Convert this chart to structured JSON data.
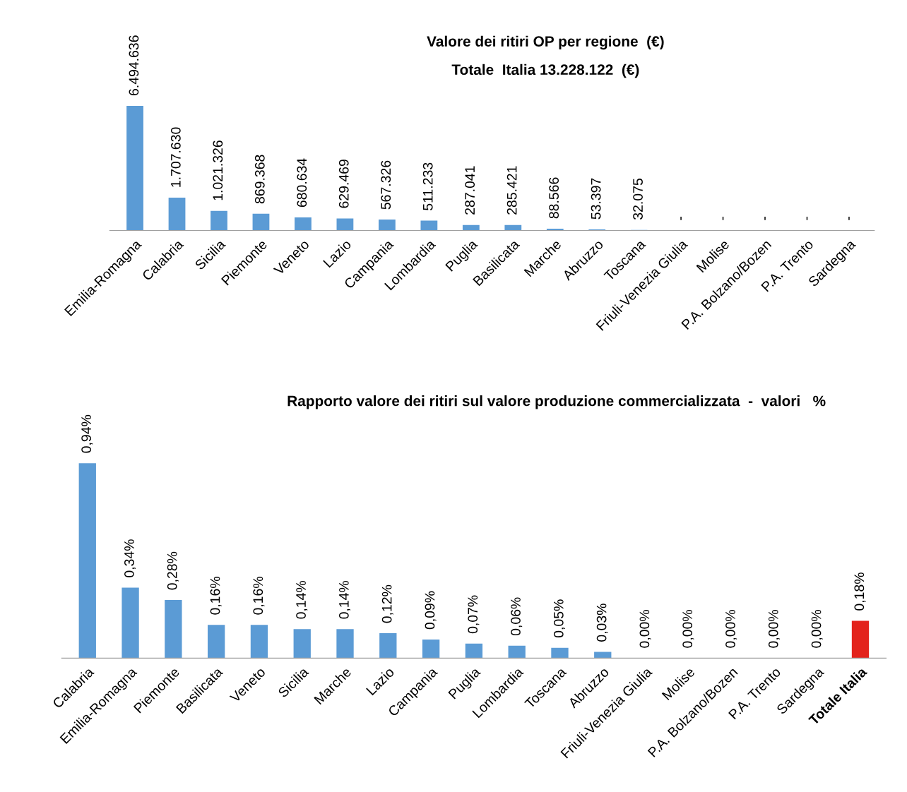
{
  "chart_data": [
    {
      "type": "bar",
      "title": "Valore dei ritiri OP per regione  (€)",
      "subtitle": "Totale  Italia 13.228.122  (€)",
      "categories": [
        "Emilia-Romagna",
        "Calabria",
        "Sicilia",
        "Piemonte",
        "Veneto",
        "Lazio",
        "Campania",
        "Lombardia",
        "Puglia",
        "Basilicata",
        "Marche",
        "Abruzzo",
        "Toscana",
        "Friuli-Venezia Giulia",
        "Molise",
        "P.A. Bolzano/Bozen",
        "P.A. Trento",
        "Sardegna"
      ],
      "values": [
        6494636,
        1707630,
        1021326,
        869368,
        680634,
        629469,
        567326,
        511233,
        287041,
        285421,
        88566,
        53397,
        32075,
        0,
        0,
        0,
        0,
        0
      ],
      "value_labels": [
        "6.494.636",
        "1.707.630",
        "1.021.326",
        "869.368",
        "680.634",
        "629.469",
        "567.326",
        "511.233",
        "287.041",
        "285.421",
        "88.566",
        "53.397",
        "32.075",
        "-",
        "-",
        "-",
        "-",
        "-"
      ],
      "colors": [
        "#5b9bd5",
        "#5b9bd5",
        "#5b9bd5",
        "#5b9bd5",
        "#5b9bd5",
        "#5b9bd5",
        "#5b9bd5",
        "#5b9bd5",
        "#5b9bd5",
        "#5b9bd5",
        "#5b9bd5",
        "#5b9bd5",
        "#5b9bd5",
        "#5b9bd5",
        "#5b9bd5",
        "#5b9bd5",
        "#5b9bd5",
        "#5b9bd5"
      ],
      "tick_labels": "x",
      "grid": false,
      "legend": false
    },
    {
      "type": "bar",
      "title": "Rapporto valore dei ritiri sul valore produzione commercializzata  -  valori   %",
      "categories": [
        "Calabria",
        "Emilia-Romagna",
        "Piemonte",
        "Basilicata",
        "Veneto",
        "Sicilia",
        "Marche",
        "Lazio",
        "Campania",
        "Puglia",
        "Lombardia",
        "Toscana",
        "Abruzzo",
        "Friuli-Venezia Giulia",
        "Molise",
        "P.A. Bolzano/Bozen",
        "P.A. Trento",
        "Sardegna",
        "Totale Italia"
      ],
      "values": [
        0.94,
        0.34,
        0.28,
        0.16,
        0.16,
        0.14,
        0.14,
        0.12,
        0.09,
        0.07,
        0.06,
        0.05,
        0.03,
        0.0,
        0.0,
        0.0,
        0.0,
        0.0,
        0.18
      ],
      "value_labels": [
        "0,94%",
        "0,34%",
        "0,28%",
        "0,16%",
        "0,16%",
        "0,14%",
        "0,14%",
        "0,12%",
        "0,09%",
        "0,07%",
        "0,06%",
        "0,05%",
        "0,03%",
        "0,00%",
        "0,00%",
        "0,00%",
        "0,00%",
        "0,00%",
        "0,18%"
      ],
      "colors": [
        "#5b9bd5",
        "#5b9bd5",
        "#5b9bd5",
        "#5b9bd5",
        "#5b9bd5",
        "#5b9bd5",
        "#5b9bd5",
        "#5b9bd5",
        "#5b9bd5",
        "#5b9bd5",
        "#5b9bd5",
        "#5b9bd5",
        "#5b9bd5",
        "#5b9bd5",
        "#5b9bd5",
        "#5b9bd5",
        "#5b9bd5",
        "#5b9bd5",
        "#e3231c"
      ],
      "tick_labels": "x",
      "grid": false,
      "legend": false
    }
  ]
}
